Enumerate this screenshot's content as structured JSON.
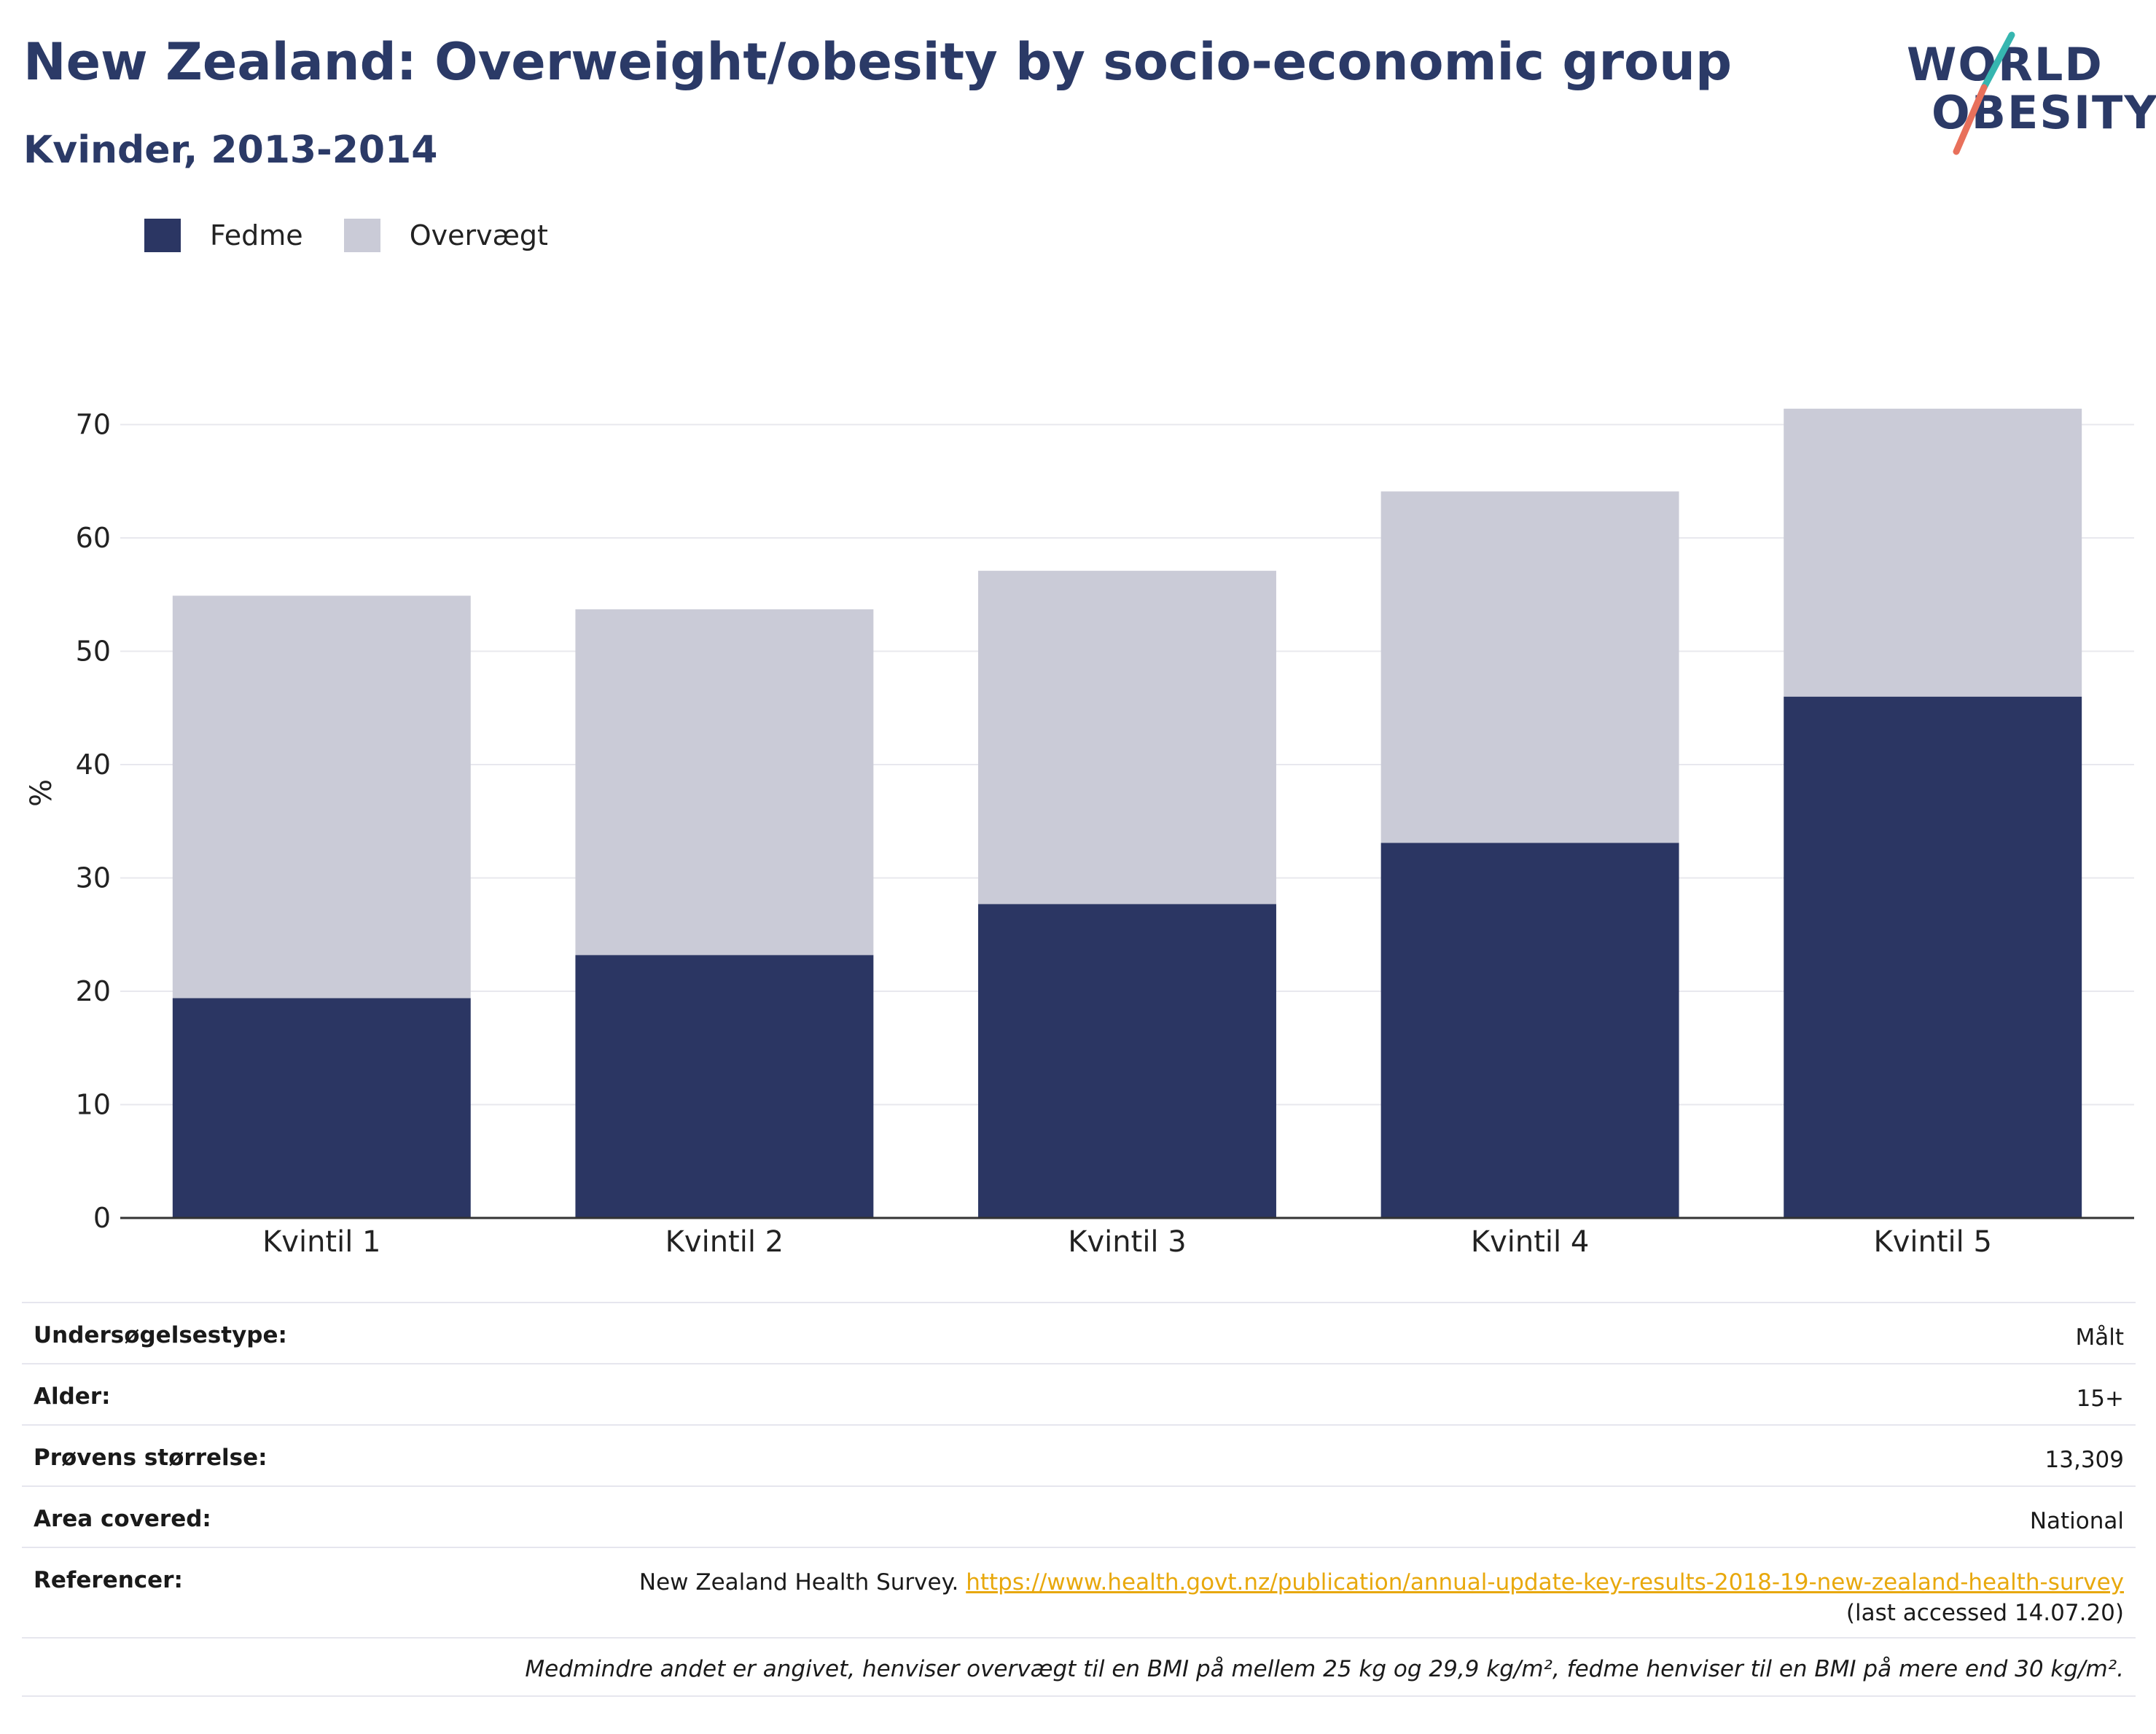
{
  "header": {
    "title": "New Zealand: Overweight/obesity by socio-economic group",
    "subtitle": "Kvinder, 2013-2014"
  },
  "logo": {
    "line1": "WORLD",
    "line2": "OBESITY"
  },
  "colors": {
    "fedme": "#2b3663",
    "overvaegt": "#cacbd7",
    "title": "#2b3a67",
    "link": "#e8a80c"
  },
  "legend": {
    "items": [
      {
        "label": "Fedme"
      },
      {
        "label": "Overvægt"
      }
    ]
  },
  "chart_data": {
    "type": "bar",
    "stacked": true,
    "categories": [
      "Kvintil 1",
      "Kvintil 2",
      "Kvintil 3",
      "Kvintil 4",
      "Kvintil 5"
    ],
    "series": [
      {
        "name": "Fedme",
        "values": [
          19.4,
          23.2,
          27.7,
          33.1,
          46.0
        ]
      },
      {
        "name": "Overvægt",
        "values": [
          35.5,
          30.5,
          29.4,
          31.0,
          25.4
        ]
      }
    ],
    "ylabel": "%",
    "xlabel": "",
    "ylim": [
      0,
      75
    ],
    "yticks": [
      0,
      10,
      20,
      30,
      40,
      50,
      60,
      70
    ],
    "grid": true,
    "legend_position": "top-left"
  },
  "info": {
    "survey_type": {
      "label": "Undersøgelsestype:",
      "value": "Målt"
    },
    "age": {
      "label": "Alder:",
      "value": "15+"
    },
    "sample_size": {
      "label": "Prøvens størrelse:",
      "value": "13,309"
    },
    "area": {
      "label": "Area covered:",
      "value": "National"
    },
    "references": {
      "label": "Referencer:",
      "text": "New Zealand Health Survey. ",
      "link": "https://www.health.govt.nz/publication/annual-update-key-results-2018-19-new-zealand-health-survey",
      "accessed": "(last accessed 14.07.20)"
    },
    "note": "Medmindre andet er angivet, henviser overvægt til en BMI på mellem 25 kg og 29,9 kg/m², fedme henviser til en BMI på mere end 30 kg/m²."
  }
}
